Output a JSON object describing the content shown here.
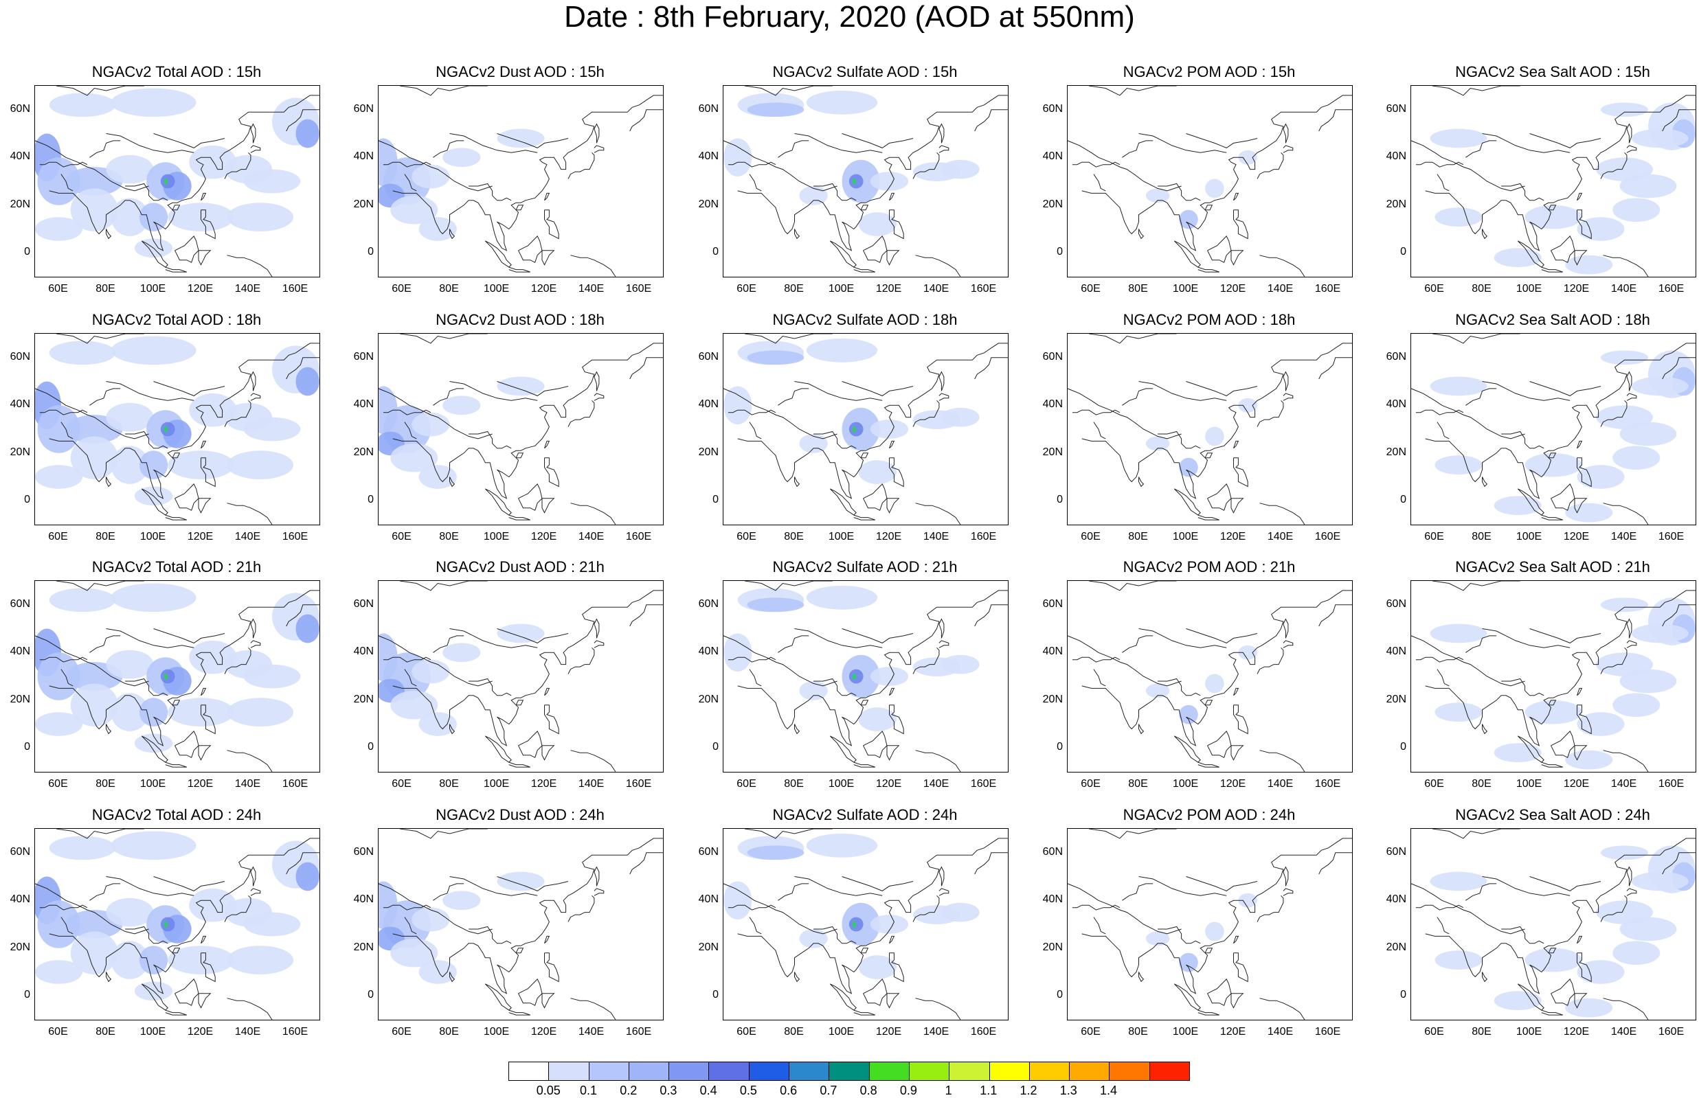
{
  "title": "Date : 8th February, 2020 (AOD at 550nm)",
  "x_ticks": [
    "60E",
    "80E",
    "100E",
    "120E",
    "140E",
    "160E"
  ],
  "y_ticks": [
    "60N",
    "40N",
    "20N",
    "0"
  ],
  "colors": {
    "light": "#d6e0fc",
    "medium": "#b4c6fb",
    "strong": "#8fa8f6",
    "deep": "#6f86ee",
    "hotspot": "#33cc66"
  },
  "panels": [
    {
      "title": "NGACv2 Total AOD : 15h",
      "field": "total"
    },
    {
      "title": "NGACv2 Dust AOD : 15h",
      "field": "dust"
    },
    {
      "title": "NGACv2 Sulfate AOD : 15h",
      "field": "sulfate"
    },
    {
      "title": "NGACv2 POM AOD : 15h",
      "field": "pom"
    },
    {
      "title": "NGACv2 Sea Salt AOD : 15h",
      "field": "seasalt"
    },
    {
      "title": "NGACv2 Total AOD : 18h",
      "field": "total"
    },
    {
      "title": "NGACv2 Dust AOD : 18h",
      "field": "dust"
    },
    {
      "title": "NGACv2 Sulfate AOD : 18h",
      "field": "sulfate"
    },
    {
      "title": "NGACv2 POM AOD : 18h",
      "field": "pom"
    },
    {
      "title": "NGACv2 Sea Salt AOD : 18h",
      "field": "seasalt"
    },
    {
      "title": "NGACv2 Total AOD : 21h",
      "field": "total"
    },
    {
      "title": "NGACv2 Dust AOD : 21h",
      "field": "dust"
    },
    {
      "title": "NGACv2 Sulfate AOD : 21h",
      "field": "sulfate"
    },
    {
      "title": "NGACv2 POM AOD : 21h",
      "field": "pom"
    },
    {
      "title": "NGACv2 Sea Salt AOD : 21h",
      "field": "seasalt"
    },
    {
      "title": "NGACv2 Total AOD : 24h",
      "field": "total"
    },
    {
      "title": "NGACv2 Dust AOD : 24h",
      "field": "dust"
    },
    {
      "title": "NGACv2 Sulfate AOD : 24h",
      "field": "sulfate"
    },
    {
      "title": "NGACv2 POM AOD : 24h",
      "field": "pom"
    },
    {
      "title": "NGACv2 Sea Salt  AOD : 24h",
      "field": "seasalt"
    }
  ],
  "colorbar": {
    "labels": [
      "0.05",
      "0.1",
      "0.2",
      "0.3",
      "0.4",
      "0.5",
      "0.6",
      "0.7",
      "0.8",
      "0.9",
      "1",
      "1.1",
      "1.2",
      "1.3",
      "1.4"
    ],
    "colors": [
      "#ffffff",
      "#d6e0fc",
      "#b4c6fb",
      "#a0b5f8",
      "#8098f2",
      "#5f6fe6",
      "#1f5de6",
      "#2b88cc",
      "#009080",
      "#44dd22",
      "#99ee11",
      "#ccf233",
      "#ffff00",
      "#ffcc00",
      "#ffaa00",
      "#ff7700",
      "#ff2200"
    ]
  }
}
